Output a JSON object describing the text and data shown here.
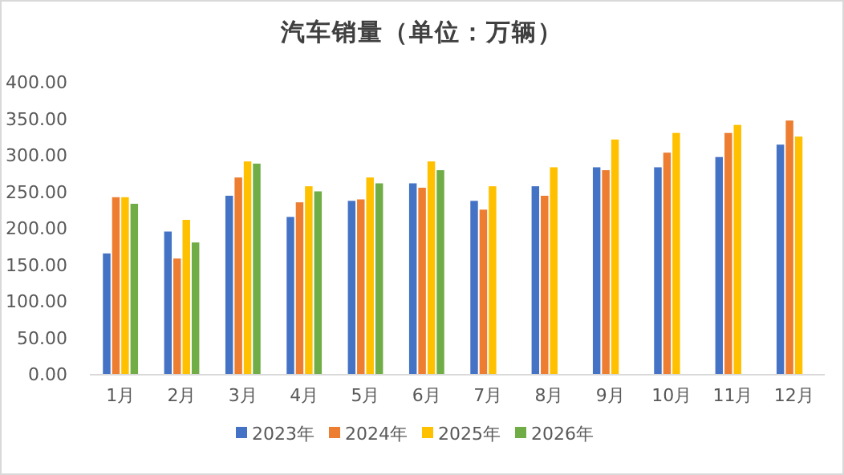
{
  "chart_data": {
    "type": "bar",
    "title": "汽车销量（单位：万辆）",
    "categories": [
      "1月",
      "2月",
      "3月",
      "4月",
      "5月",
      "6月",
      "7月",
      "8月",
      "9月",
      "10月",
      "11月",
      "12月"
    ],
    "series": [
      {
        "name": "2023年",
        "color": "#4472c4",
        "values": [
          165,
          195,
          244,
          215,
          237,
          261,
          237,
          257,
          283,
          283,
          297,
          314
        ]
      },
      {
        "name": "2024年",
        "color": "#ed7d31",
        "values": [
          242,
          158,
          269,
          235,
          239,
          255,
          225,
          244,
          279,
          303,
          330,
          347
        ]
      },
      {
        "name": "2025年",
        "color": "#ffc000",
        "values": [
          242,
          211,
          291,
          257,
          269,
          291,
          257,
          283,
          321,
          330,
          341,
          325
        ]
      },
      {
        "name": "2026年",
        "color": "#70ad47",
        "values": [
          233,
          180,
          288,
          250,
          261,
          279,
          null,
          null,
          null,
          null,
          null,
          null
        ]
      }
    ],
    "ylim": [
      0,
      400
    ],
    "yticks": [
      {
        "value": 0,
        "label": "0.00"
      },
      {
        "value": 50,
        "label": "50.00"
      },
      {
        "value": 100,
        "label": "100.00"
      },
      {
        "value": 150,
        "label": "150.00"
      },
      {
        "value": 200,
        "label": "200.00"
      },
      {
        "value": 250,
        "label": "250.00"
      },
      {
        "value": 300,
        "label": "300.00"
      },
      {
        "value": 350,
        "label": "350.00"
      },
      {
        "value": 400,
        "label": "400.00"
      }
    ],
    "grid": false,
    "legend": "bottom"
  }
}
